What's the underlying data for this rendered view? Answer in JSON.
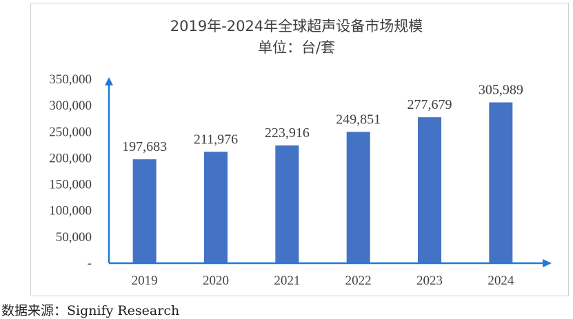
{
  "chart_data": {
    "type": "bar",
    "title": "2019年-2024年全球超声设备市场规模",
    "subtitle": "单位：台/套",
    "categories": [
      "2019",
      "2020",
      "2021",
      "2022",
      "2023",
      "2024"
    ],
    "values": [
      197683,
      211976,
      223916,
      249851,
      277679,
      305989
    ],
    "data_labels": [
      "197,683",
      "211,976",
      "223,916",
      "249,851",
      "277,679",
      "305,989"
    ],
    "y_ticks": [
      "-",
      "50,000",
      "100,000",
      "150,000",
      "200,000",
      "250,000",
      "300,000",
      "350,000"
    ],
    "ylim": [
      0,
      350000
    ],
    "grid": false,
    "bar_color": "#4472c4",
    "axis_color": "#1f7ad6"
  },
  "source": "数据来源：Signify Research"
}
